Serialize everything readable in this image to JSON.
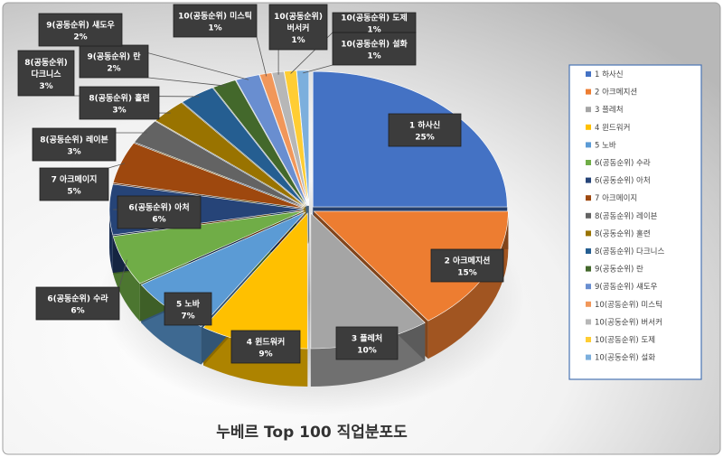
{
  "chart_data": {
    "type": "pie",
    "title": "누베르 Top 100 직업분포도",
    "legend_position": "right",
    "style": "3d-exploded",
    "categories": [
      "1 하사신",
      "2 아크메지션",
      "3 플레처",
      "4 윈드워커",
      "5 노바",
      "6(공동순위) 수라",
      "6(공동순위) 아처",
      "7 아크메이지",
      "8(공동순위) 레이븐",
      "8(공동순위) 홀련",
      "8(공동순위) 다크니스",
      "9(공동순위) 란",
      "9(공동순위) 섀도우",
      "10(공동순위) 미스틱",
      "10(공동순위) 버서커",
      "10(공동순위) 도제",
      "10(공동순위) 설화"
    ],
    "values": [
      25,
      15,
      10,
      9,
      7,
      6,
      6,
      5,
      3,
      3,
      3,
      2,
      2,
      1,
      1,
      1,
      1
    ],
    "data_labels": [
      {
        "name": "1 하사신",
        "pct": "25%"
      },
      {
        "name": "2 아크메지션",
        "pct": "15%"
      },
      {
        "name": "3 플레처",
        "pct": "10%"
      },
      {
        "name": "4 윈드워커",
        "pct": "9%"
      },
      {
        "name": "5 노바",
        "pct": "7%"
      },
      {
        "name": "6(공동순위) 수라",
        "pct": "6%"
      },
      {
        "name": "6(공동순위) 아처",
        "pct": "6%"
      },
      {
        "name": "7 아크메이지",
        "pct": "5%"
      },
      {
        "name": "8(공동순위) 레이븐",
        "pct": "3%"
      },
      {
        "name": "8(공동순위) 홀련",
        "pct": "3%"
      },
      {
        "name": "8(공동순위)",
        "name2": "다크니스",
        "pct": "3%"
      },
      {
        "name": "9(공동순위) 란",
        "pct": "2%"
      },
      {
        "name": "9(공동순위) 섀도우",
        "pct": "2%"
      },
      {
        "name": "10(공동순위) 미스틱",
        "pct": "1%"
      },
      {
        "name": "10(공동순위)",
        "name2": "버서커",
        "pct": "1%"
      },
      {
        "name": "10(공동순위) 도제",
        "pct": "1%"
      },
      {
        "name": "10(공동순위) 설화",
        "pct": "1%"
      }
    ],
    "colors": [
      "#4472C4",
      "#ED7D31",
      "#A5A5A5",
      "#FFC000",
      "#5B9BD5",
      "#70AD47",
      "#264478",
      "#9E480E",
      "#636363",
      "#997300",
      "#255E91",
      "#43682B",
      "#698ED0",
      "#F1975A",
      "#B7B7B7",
      "#FFCD33",
      "#7CAFDD"
    ]
  }
}
